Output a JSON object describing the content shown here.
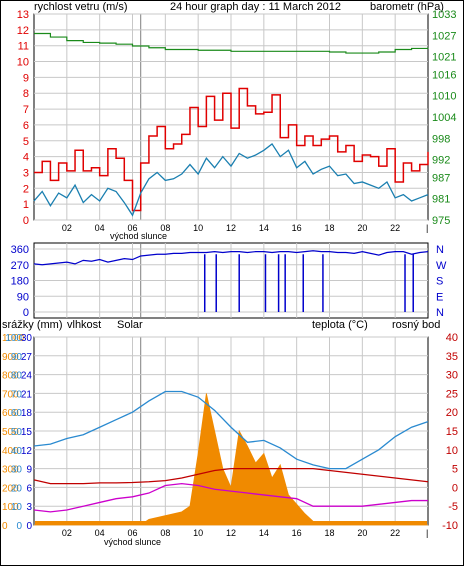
{
  "header": {
    "left_label": "rychlost vetru (m/s)",
    "title": "24 hour graph day : 11 March 2012",
    "right_label": "barometr (hPa)"
  },
  "colors": {
    "wind": "#e00000",
    "wind_avg": "#1a7fb0",
    "barometer": "#1a8a1a",
    "direction": "#0000cc",
    "humidity": "#2a8ad0",
    "solar": "#f08a00",
    "temperature": "#c00000",
    "dewpoint": "#cc00cc",
    "grid": "#c8c8c8",
    "sunrise": "#808080"
  },
  "time_axis": {
    "labels": [
      "02",
      "04",
      "06",
      "08",
      "10",
      "12",
      "14",
      "16",
      "18",
      "20",
      "22"
    ],
    "sunrise_label": "východ slunce"
  },
  "chart_data": [
    {
      "type": "line",
      "title": "24 hour graph day : 11 March 2012",
      "ylabel": "rychlost vetru (m/s)",
      "y2label": "barometr (hPa)",
      "ylim": [
        0,
        13
      ],
      "y2lim": [
        975,
        1033
      ],
      "yticks": [
        0,
        1,
        2,
        3,
        4,
        5,
        6,
        7,
        8,
        9,
        10,
        11,
        12,
        13
      ],
      "y2ticks": [
        975,
        981,
        987,
        992,
        998,
        1004,
        1010,
        1016,
        1021,
        1027,
        1033
      ],
      "xlim": [
        0,
        24
      ],
      "sunrise_hour": 6.5,
      "series": [
        {
          "key": "wind_gust",
          "x": [
            0,
            0.5,
            1,
            1.5,
            2,
            2.5,
            3,
            3.5,
            4,
            4.5,
            5,
            5.5,
            6,
            6.5,
            7,
            7.5,
            8,
            8.5,
            9,
            9.5,
            10,
            10.5,
            11,
            11.5,
            12,
            12.5,
            13,
            13.5,
            14,
            14.5,
            15,
            15.5,
            16,
            16.5,
            17,
            17.5,
            18,
            18.5,
            19,
            19.5,
            20,
            20.5,
            21,
            21.5,
            22,
            22.5,
            23,
            23.5,
            24
          ],
          "values": [
            3,
            3.7,
            2.5,
            3.6,
            3.1,
            4.4,
            3.1,
            3.3,
            2.8,
            4.5,
            3.9,
            2.5,
            0.6,
            3.6,
            5.3,
            5.9,
            4.5,
            4.8,
            5.4,
            7.1,
            5.9,
            7.8,
            6.3,
            8,
            5.8,
            8.3,
            7.2,
            6.7,
            6.8,
            7.9,
            5.2,
            6,
            4.7,
            5.3,
            4.7,
            5.1,
            5.3,
            4.3,
            4.7,
            3.7,
            4.1,
            4,
            3.4,
            4.5,
            2.4,
            3.6,
            3.1,
            3.5,
            4.3
          ]
        },
        {
          "key": "wind_avg",
          "x": [
            0,
            0.5,
            1,
            1.5,
            2,
            2.5,
            3,
            3.5,
            4,
            4.5,
            5,
            5.5,
            6,
            6.5,
            7,
            7.5,
            8,
            8.5,
            9,
            9.5,
            10,
            10.5,
            11,
            11.5,
            12,
            12.5,
            13,
            13.5,
            14,
            14.5,
            15,
            15.5,
            16,
            16.5,
            17,
            17.5,
            18,
            18.5,
            19,
            19.5,
            20,
            20.5,
            21,
            21.5,
            22,
            22.5,
            23,
            23.5,
            24
          ],
          "values": [
            1.2,
            1.8,
            0.9,
            1.7,
            1.4,
            2.2,
            1.1,
            1.6,
            1.2,
            2,
            1.8,
            1.1,
            0.3,
            1.7,
            2.6,
            3,
            2.5,
            2.6,
            2.9,
            3.5,
            2.9,
            3.9,
            3.3,
            4,
            3.4,
            4.2,
            3.9,
            4.1,
            4.4,
            4.8,
            4,
            4.4,
            3.3,
            3.7,
            2.9,
            3.2,
            3.4,
            2.8,
            2.9,
            2.3,
            2.4,
            2.2,
            2,
            2.4,
            1.4,
            1.6,
            1.2,
            1.4,
            1.6
          ]
        },
        {
          "key": "barometer",
          "x": [
            0,
            1,
            2,
            3,
            4,
            5,
            6,
            7,
            8,
            9,
            10,
            11,
            12,
            13,
            14,
            15,
            16,
            17,
            18,
            19,
            20,
            21,
            22,
            23,
            24
          ],
          "values": [
            1027.5,
            1026.5,
            1025.5,
            1025,
            1024.8,
            1024.5,
            1024,
            1023.5,
            1023,
            1023,
            1022.8,
            1022.8,
            1022.5,
            1022.5,
            1022.5,
            1022.5,
            1022.5,
            1022.5,
            1022.3,
            1022,
            1022,
            1022.3,
            1023,
            1023.3,
            1023.5
          ]
        }
      ]
    },
    {
      "type": "line",
      "ylabel": "wind direction",
      "ylim": [
        0,
        360
      ],
      "yticks": [
        0,
        90,
        180,
        270,
        360
      ],
      "cardinal_labels": [
        "N",
        "W",
        "S",
        "E",
        "N"
      ],
      "series": [
        {
          "key": "direction",
          "x": [
            0,
            0.5,
            1,
            1.5,
            2,
            2.5,
            3,
            3.5,
            4,
            4.5,
            5,
            5.5,
            6,
            6.5,
            7,
            7.5,
            8,
            8.5,
            9,
            9.5,
            10,
            10.5,
            11,
            11.5,
            12,
            12.5,
            13,
            13.5,
            14,
            14.5,
            15,
            15.5,
            16,
            16.5,
            17,
            17.5,
            18,
            18.5,
            19,
            19.5,
            20,
            20.5,
            21,
            21.5,
            22,
            22.5,
            23,
            23.5,
            24
          ],
          "values": [
            275,
            270,
            275,
            280,
            285,
            275,
            295,
            290,
            300,
            285,
            295,
            305,
            300,
            320,
            325,
            330,
            330,
            335,
            335,
            340,
            340,
            340,
            345,
            340,
            345,
            345,
            340,
            345,
            345,
            340,
            345,
            345,
            340,
            345,
            350,
            345,
            345,
            340,
            340,
            335,
            345,
            335,
            325,
            340,
            345,
            345,
            330,
            340,
            345
          ]
        }
      ],
      "drops_to_zero_hours": [
        10.4,
        11.1,
        12.5,
        14.1,
        14.9,
        15.3,
        16.4,
        17.6,
        22.6,
        23.1
      ]
    },
    {
      "type": "area",
      "left_labels": [
        "srážky (mm)",
        "vlhkost",
        "Solar"
      ],
      "right_labels": [
        "teplota (°C)",
        "rosný bod"
      ],
      "axes": {
        "rain_mm": [
          0,
          3,
          6,
          9,
          12,
          15,
          18,
          21,
          24,
          27,
          30
        ],
        "humidity_pct": [
          0,
          10,
          20,
          30,
          40,
          50,
          60,
          70,
          80,
          90,
          100
        ],
        "solar_wm2": [
          0,
          100,
          200,
          300,
          400,
          500,
          600,
          700,
          800,
          900,
          1000
        ],
        "temperature_c": [
          -10,
          -5,
          0,
          5,
          10,
          15,
          20,
          25,
          30,
          35,
          40
        ]
      },
      "series": [
        {
          "key": "humidity",
          "unit": "%",
          "x": [
            0,
            1,
            2,
            3,
            4,
            5,
            6,
            7,
            8,
            9,
            10,
            11,
            12,
            13,
            14,
            15,
            16,
            17,
            18,
            19,
            20,
            21,
            22,
            23,
            24
          ],
          "values": [
            42,
            43,
            46,
            48,
            52,
            56,
            60,
            66,
            71,
            71,
            68,
            61,
            52,
            44,
            45,
            41,
            35,
            32,
            30,
            30,
            35,
            40,
            47,
            52,
            55
          ]
        },
        {
          "key": "temperature",
          "unit": "°C",
          "x": [
            0,
            1,
            2,
            3,
            4,
            5,
            6,
            7,
            8,
            9,
            10,
            11,
            12,
            13,
            14,
            15,
            16,
            17,
            18,
            19,
            20,
            21,
            22,
            23,
            24
          ],
          "values": [
            2,
            1,
            1,
            1,
            1.2,
            1.2,
            1.3,
            1.5,
            1.8,
            2.5,
            3.5,
            4.5,
            5,
            5,
            5,
            5,
            5,
            5,
            4.5,
            4,
            3.5,
            3,
            2.5,
            2,
            1.5
          ]
        },
        {
          "key": "dewpoint",
          "unit": "°C",
          "x": [
            0,
            1,
            2,
            3,
            4,
            5,
            6,
            7,
            8,
            9,
            10,
            11,
            12,
            13,
            14,
            15,
            16,
            17,
            18,
            19,
            20,
            21,
            22,
            23,
            24
          ],
          "values": [
            -6,
            -6.5,
            -6,
            -5,
            -4,
            -3,
            -2.5,
            -1.5,
            0.5,
            1,
            0.5,
            -0.5,
            -1,
            -1.5,
            -2,
            -2.5,
            -3,
            -5,
            -5,
            -5,
            -5,
            -4.5,
            -4,
            -3.5,
            -3.5
          ]
        },
        {
          "key": "solar",
          "unit": "W/m²",
          "x": [
            0,
            6.5,
            7,
            8,
            9,
            9.5,
            10,
            10.5,
            11,
            11.5,
            12,
            12.5,
            13,
            13.5,
            14,
            14.5,
            15,
            15.5,
            16,
            16.5,
            17,
            17.5,
            18,
            24
          ],
          "values": [
            0,
            0,
            30,
            50,
            70,
            100,
            380,
            700,
            500,
            300,
            200,
            500,
            420,
            330,
            380,
            250,
            320,
            160,
            110,
            60,
            20,
            10,
            0,
            0
          ]
        }
      ]
    }
  ]
}
